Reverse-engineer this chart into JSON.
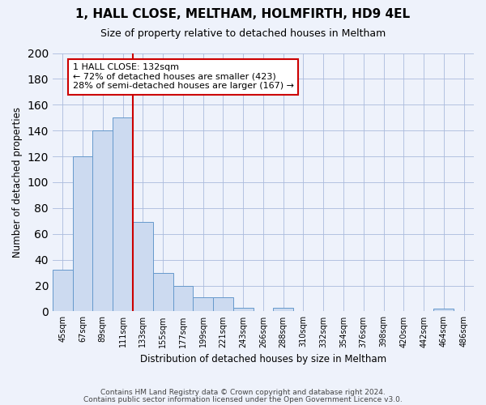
{
  "title": "1, HALL CLOSE, MELTHAM, HOLMFIRTH, HD9 4EL",
  "subtitle": "Size of property relative to detached houses in Meltham",
  "xlabel": "Distribution of detached houses by size in Meltham",
  "ylabel": "Number of detached properties",
  "bin_labels": [
    "45sqm",
    "67sqm",
    "89sqm",
    "111sqm",
    "133sqm",
    "155sqm",
    "177sqm",
    "199sqm",
    "221sqm",
    "243sqm",
    "266sqm",
    "288sqm",
    "310sqm",
    "332sqm",
    "354sqm",
    "376sqm",
    "398sqm",
    "420sqm",
    "442sqm",
    "464sqm",
    "486sqm"
  ],
  "bar_values": [
    32,
    120,
    140,
    150,
    69,
    30,
    20,
    11,
    11,
    3,
    0,
    3,
    0,
    0,
    0,
    0,
    0,
    0,
    0,
    2,
    0
  ],
  "bar_color": "#ccdaf0",
  "bar_edge_color": "#6699cc",
  "vline_color": "#cc0000",
  "annotation_title": "1 HALL CLOSE: 132sqm",
  "annotation_line1": "← 72% of detached houses are smaller (423)",
  "annotation_line2": "28% of semi-detached houses are larger (167) →",
  "annotation_box_color": "#ffffff",
  "annotation_box_edge": "#cc0000",
  "ylim": [
    0,
    200
  ],
  "yticks": [
    0,
    20,
    40,
    60,
    80,
    100,
    120,
    140,
    160,
    180,
    200
  ],
  "footer1": "Contains HM Land Registry data © Crown copyright and database right 2024.",
  "footer2": "Contains public sector information licensed under the Open Government Licence v3.0.",
  "bg_color": "#eef2fb",
  "plot_bg_color": "#eef2fb"
}
